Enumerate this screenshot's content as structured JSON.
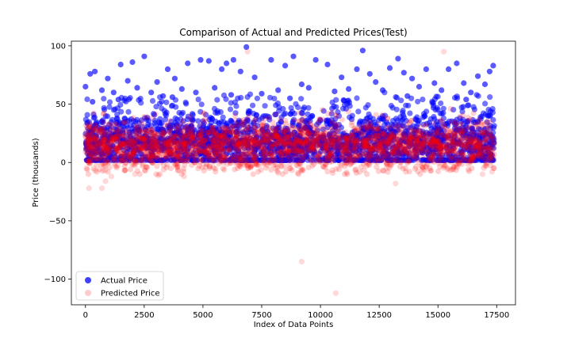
{
  "chart_data": {
    "type": "scatter",
    "title": "Comparison of Actual and Predicted Prices(Test)",
    "xlabel": "Index of Data Points",
    "ylabel": "Price (thousands)",
    "xlim": [
      -600,
      18300
    ],
    "ylim": [
      -122,
      104
    ],
    "x_ticks": [
      0,
      2500,
      5000,
      7500,
      10000,
      12500,
      15000,
      17500
    ],
    "x_tick_labels": [
      "0",
      "2500",
      "5000",
      "7500",
      "10000",
      "12500",
      "15000",
      "17500"
    ],
    "y_ticks": [
      -100,
      -50,
      0,
      50,
      100
    ],
    "y_tick_labels": [
      "−100",
      "−50",
      "0",
      "50",
      "100"
    ],
    "grid": false,
    "legend_position": "lower-left",
    "series": [
      {
        "name": "Actual Price",
        "color": "#0000ff",
        "opacity": 0.65,
        "x": [
          0,
          200,
          400,
          700,
          950,
          1200,
          1500,
          1800,
          2000,
          2200,
          2500,
          2800,
          3050,
          3300,
          3500,
          3800,
          4100,
          4350,
          4700,
          4900,
          5250,
          5500,
          5800,
          6000,
          6300,
          6600,
          6850,
          7200,
          7500,
          7900,
          8200,
          8500,
          8850,
          9200,
          9500,
          9800,
          10300,
          10600,
          10900,
          11200,
          11550,
          11800,
          12100,
          12350,
          12650,
          12950,
          13300,
          13550,
          13900,
          14200,
          14500,
          14850,
          15150,
          15450,
          15800,
          16100,
          16400,
          16700,
          17000,
          17200,
          17350,
          300,
          1400,
          3700,
          6200,
          8700,
          11000,
          13700,
          16200
        ],
        "y": [
          65,
          76,
          78,
          62,
          72,
          60,
          84,
          70,
          86,
          64,
          91,
          60,
          69,
          57,
          80,
          72,
          63,
          85,
          60,
          88,
          87,
          64,
          80,
          85,
          88,
          78,
          99,
          73,
          59,
          88,
          62,
          83,
          91,
          67,
          64,
          88,
          84,
          61,
          73,
          63,
          80,
          96,
          76,
          69,
          62,
          81,
          89,
          77,
          72,
          65,
          80,
          68,
          62,
          80,
          85,
          68,
          60,
          74,
          67,
          78,
          83,
          52,
          54,
          56,
          58,
          55,
          53,
          57,
          54
        ]
      },
      {
        "name": "Predicted Price",
        "color": "#ff0000",
        "opacity": 0.15,
        "x": [
          150,
          700,
          850,
          1100,
          2100,
          3100,
          4200,
          6900,
          9200,
          10650,
          13200,
          15250,
          16900,
          17300
        ],
        "y": [
          -22,
          -22,
          -16,
          -12,
          -10,
          -11,
          -12,
          95,
          -85,
          -112,
          -18,
          95,
          -10,
          -8
        ]
      }
    ]
  }
}
